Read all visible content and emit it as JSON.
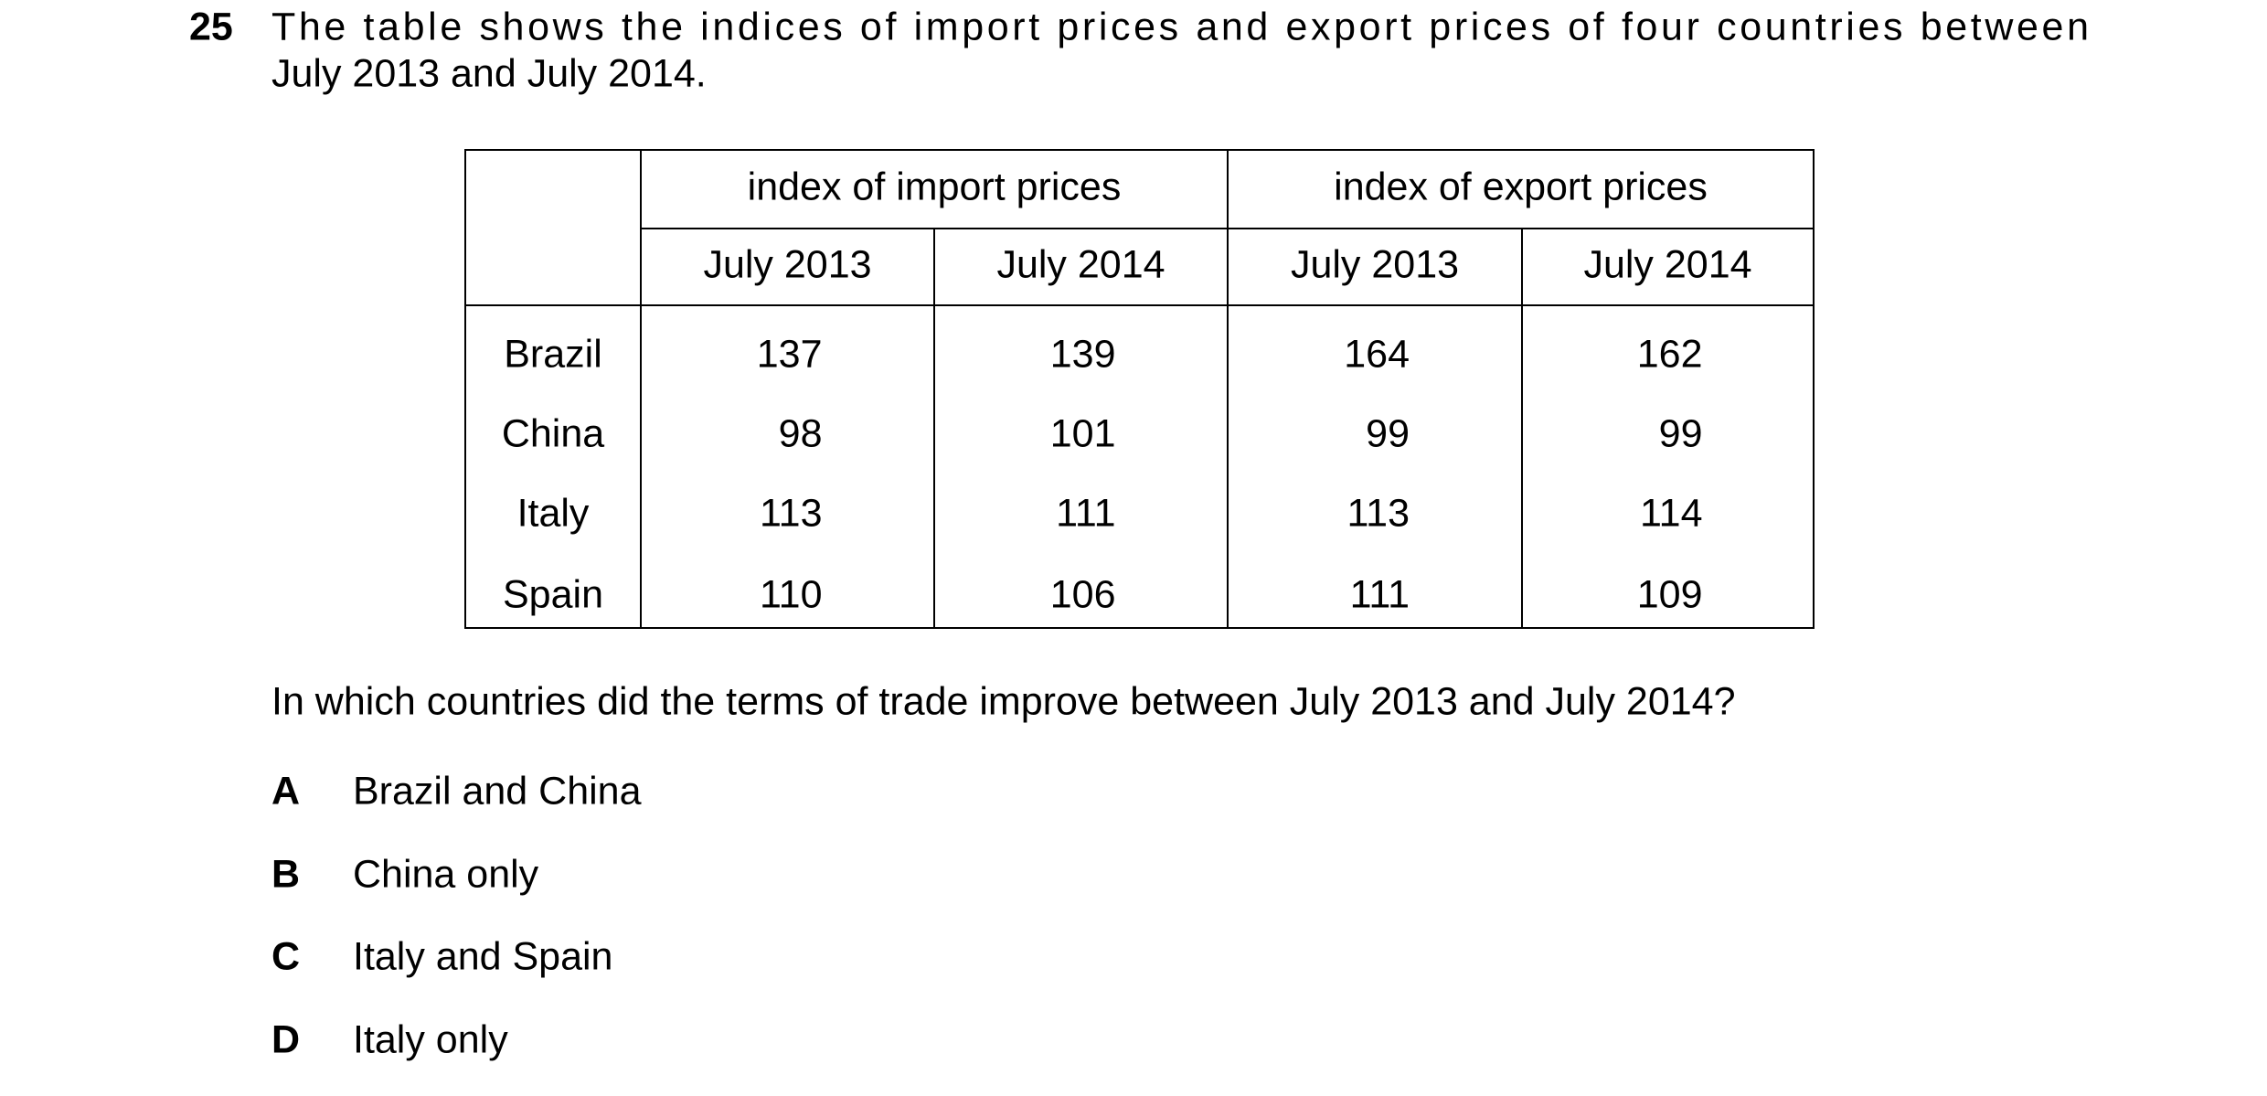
{
  "question": {
    "number": "25",
    "stem_lines": [
      "The table shows the indices of import prices and export prices of four countries between",
      "July 2013 and July 2014."
    ],
    "table": {
      "groups": [
        "index of import prices",
        "index of export prices"
      ],
      "columns": [
        "July 2013",
        "July 2014",
        "July 2013",
        "July 2014"
      ],
      "rows": [
        [
          "Brazil",
          137,
          139,
          164,
          162
        ],
        [
          "China",
          98,
          101,
          99,
          99
        ],
        [
          "Italy",
          113,
          111,
          113,
          114
        ],
        [
          "Spain",
          110,
          106,
          111,
          109
        ]
      ]
    },
    "prompt": "In which countries did the terms of trade improve between July 2013 and July 2014?",
    "options": [
      {
        "letter": "A",
        "text": "Brazil and China"
      },
      {
        "letter": "B",
        "text": "China only"
      },
      {
        "letter": "C",
        "text": "Italy and Spain"
      },
      {
        "letter": "D",
        "text": "Italy only"
      }
    ]
  }
}
